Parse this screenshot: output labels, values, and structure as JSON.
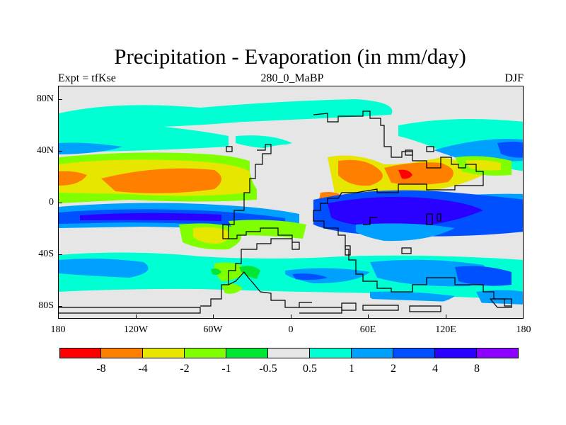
{
  "title": "Precipitation - Evaporation (in mm/day)",
  "left_label": "Expt = tfKse",
  "center_label": "280_0_MaBP",
  "right_label": "DJF",
  "y_ticks": [
    "80N",
    "40N",
    "0",
    "40S",
    "80S"
  ],
  "x_ticks": [
    "180",
    "120W",
    "60W",
    "0",
    "60E",
    "120E",
    "180"
  ],
  "colorbar": {
    "colors": [
      "#ff0000",
      "#ff8000",
      "#e6e600",
      "#80ff00",
      "#00e632",
      "#e6e6e6",
      "#00ffd2",
      "#00a0ff",
      "#0050ff",
      "#2a00ff",
      "#8c00ff"
    ],
    "labels": [
      "-8",
      "-4",
      "-2",
      "-1",
      "-0.5",
      "0.5",
      "1",
      "2",
      "4",
      "8"
    ]
  }
}
